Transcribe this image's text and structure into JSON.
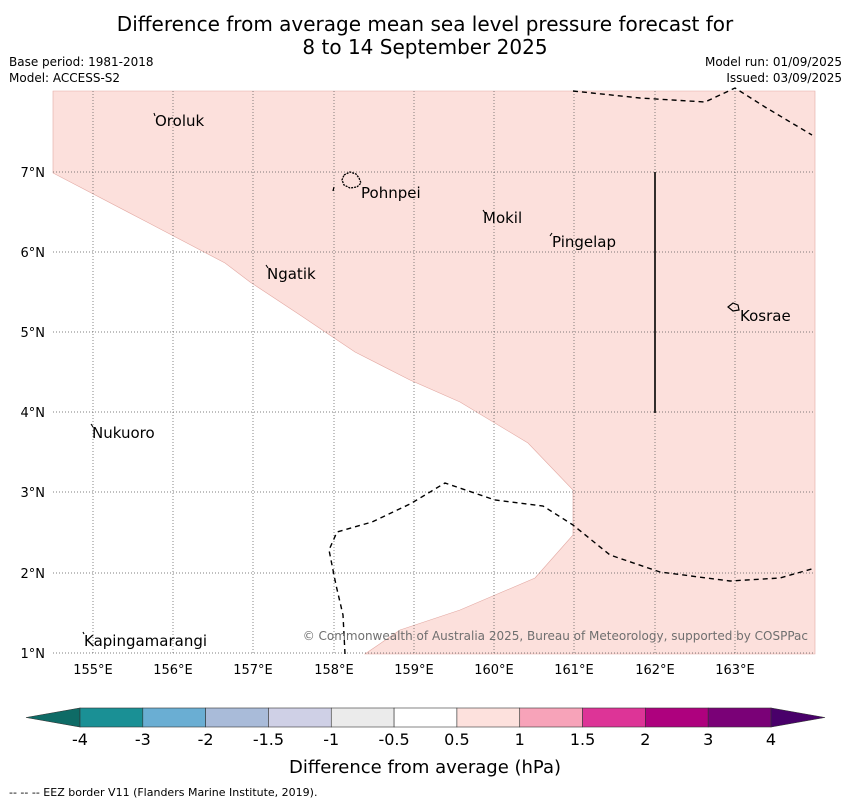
{
  "title_line1": "Difference from average mean sea level pressure forecast for",
  "title_line2": "8 to 14 September 2025",
  "base_period": "Base period: 1981-2018",
  "model": "Model: ACCESS-S2",
  "model_run": "Model run: 01/09/2025",
  "issued": "Issued: 03/09/2025",
  "copyright": "© Commonwealth of Australia 2025, Bureau of Meteorology, supported by COSPPac",
  "footnote": "--  --  -- EEZ border V11 (Flanders Marine Institute, 2019).",
  "lon_ticks": [
    "155°E",
    "156°E",
    "157°E",
    "158°E",
    "159°E",
    "160°E",
    "161°E",
    "162°E",
    "163°E"
  ],
  "lat_ticks": [
    "1°N",
    "2°N",
    "3°N",
    "4°N",
    "5°N",
    "6°N",
    "7°N"
  ],
  "places": [
    "Oroluk",
    "Pohnpei",
    "Mokil",
    "Pingelap",
    "Ngatik",
    "Kosrae",
    "Nukuoro",
    "Kapingamarangi"
  ],
  "colorbar": {
    "title": "Difference from average (hPa)",
    "labels": [
      "-4",
      "-3",
      "-2",
      "-1.5",
      "-1",
      "-0.5",
      "0.5",
      "1",
      "1.5",
      "2",
      "3",
      "4"
    ],
    "colors": [
      "#0e6b66",
      "#1a9095",
      "#6aaed3",
      "#a9bbd9",
      "#cfd0e6",
      "#ebebeb",
      "#ffffff",
      "#fde1dd",
      "#f7a3b9",
      "#dd3497",
      "#ae017e",
      "#7a0177",
      "#49006a"
    ]
  }
}
